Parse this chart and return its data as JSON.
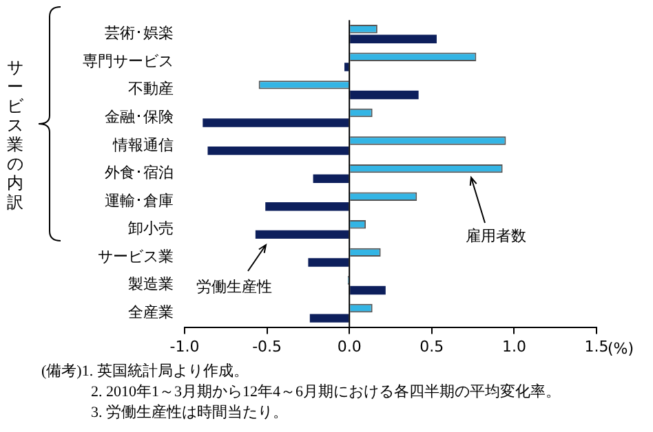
{
  "chart_data": {
    "type": "bar",
    "orientation": "horizontal",
    "categories": [
      "芸術･娯楽",
      "専門サービス",
      "不動産",
      "金融･保険",
      "情報通信",
      "外食･宿泊",
      "運輸･倉庫",
      "卸小売",
      "サービス業",
      "製造業",
      "全産業"
    ],
    "series": [
      {
        "name": "雇用者数",
        "color": "#33b5e5",
        "values": [
          0.17,
          0.77,
          -0.55,
          0.14,
          0.95,
          0.93,
          0.41,
          0.1,
          0.19,
          -0.01,
          0.14
        ]
      },
      {
        "name": "労働生産性",
        "color": "#0d1f5c",
        "values": [
          0.53,
          -0.03,
          0.42,
          -0.89,
          -0.86,
          -0.22,
          -0.51,
          -0.57,
          -0.25,
          0.22,
          -0.24
        ]
      }
    ],
    "xlim": [
      -1,
      1.5
    ],
    "xticks": [
      {
        "value": -1,
        "label": "-1.0"
      },
      {
        "value": -0.5,
        "label": "-0.5"
      },
      {
        "value": 0,
        "label": "0.0"
      },
      {
        "value": 0.5,
        "label": "0.5"
      },
      {
        "value": 1,
        "label": "1.0"
      },
      {
        "value": 1.5,
        "label": "1.5"
      }
    ],
    "xlabel": "(%)",
    "grid": false,
    "ref_lines": [
      {
        "axis": "x",
        "value": 0
      }
    ],
    "legend": false,
    "annotations": [
      "サービス業の内訳",
      "(備考)1. 英国統計局より作成。",
      "2. 2010年1～3月期から12年4～6月期における各四半期の平均変化率。",
      "3. 労働生産性は時間当たり。"
    ]
  }
}
